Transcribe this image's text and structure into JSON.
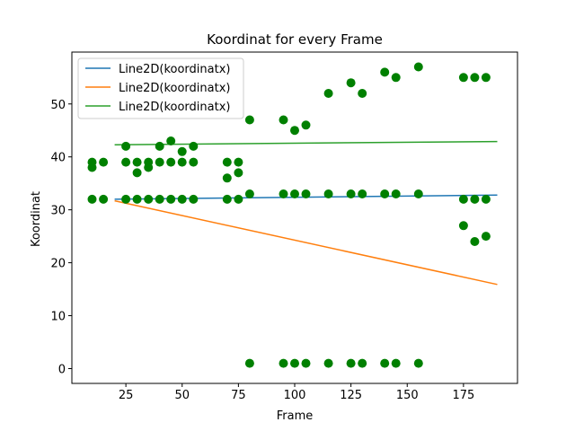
{
  "chart_data": {
    "type": "scatter",
    "title": "Koordinat for every Frame",
    "xlabel": "Frame",
    "ylabel": "Koordinat",
    "xlim": [
      1.0,
      199.0
    ],
    "ylim": [
      -2.8,
      59.8
    ],
    "xticks": [
      25,
      50,
      75,
      100,
      125,
      150,
      175
    ],
    "yticks": [
      0,
      10,
      20,
      30,
      40,
      50
    ],
    "grid": false,
    "legend_position": "top-left",
    "scatter": {
      "color": "#008000",
      "points": [
        [
          10,
          32
        ],
        [
          10,
          38
        ],
        [
          10,
          39
        ],
        [
          15,
          32
        ],
        [
          15,
          39
        ],
        [
          25,
          32
        ],
        [
          25,
          39
        ],
        [
          25,
          42
        ],
        [
          30,
          32
        ],
        [
          30,
          37
        ],
        [
          30,
          39
        ],
        [
          35,
          32
        ],
        [
          35,
          38
        ],
        [
          35,
          39
        ],
        [
          40,
          32
        ],
        [
          40,
          39
        ],
        [
          40,
          42
        ],
        [
          45,
          32
        ],
        [
          45,
          39
        ],
        [
          45,
          43
        ],
        [
          50,
          32
        ],
        [
          50,
          39
        ],
        [
          50,
          41
        ],
        [
          55,
          32
        ],
        [
          55,
          39
        ],
        [
          55,
          42
        ],
        [
          70,
          32
        ],
        [
          70,
          36
        ],
        [
          70,
          39
        ],
        [
          75,
          32
        ],
        [
          75,
          37
        ],
        [
          75,
          39
        ],
        [
          80,
          1
        ],
        [
          80,
          33
        ],
        [
          80,
          47
        ],
        [
          95,
          1
        ],
        [
          95,
          33
        ],
        [
          95,
          47
        ],
        [
          100,
          1
        ],
        [
          100,
          33
        ],
        [
          100,
          45
        ],
        [
          105,
          1
        ],
        [
          105,
          33
        ],
        [
          105,
          46
        ],
        [
          115,
          1
        ],
        [
          115,
          33
        ],
        [
          115,
          52
        ],
        [
          125,
          1
        ],
        [
          125,
          33
        ],
        [
          125,
          54
        ],
        [
          130,
          1
        ],
        [
          130,
          33
        ],
        [
          130,
          52
        ],
        [
          140,
          1
        ],
        [
          140,
          33
        ],
        [
          140,
          56
        ],
        [
          145,
          1
        ],
        [
          145,
          33
        ],
        [
          145,
          55
        ],
        [
          155,
          1
        ],
        [
          155,
          33
        ],
        [
          155,
          57
        ],
        [
          175,
          27
        ],
        [
          175,
          32
        ],
        [
          175,
          55
        ],
        [
          180,
          24
        ],
        [
          180,
          32
        ],
        [
          180,
          55
        ],
        [
          185,
          25
        ],
        [
          185,
          32
        ],
        [
          185,
          55
        ]
      ]
    },
    "series": [
      {
        "name": "Line2D(koordinatx)",
        "color": "#1f77b4",
        "x": [
          20,
          190
        ],
        "y": [
          32.0,
          32.8
        ]
      },
      {
        "name": "Line2D(koordinatx)",
        "color": "#ff7f0e",
        "x": [
          20,
          190
        ],
        "y": [
          31.7,
          15.9
        ]
      },
      {
        "name": "Line2D(koordinatx)",
        "color": "#2ca02c",
        "x": [
          20,
          190
        ],
        "y": [
          42.3,
          42.9
        ]
      }
    ]
  }
}
